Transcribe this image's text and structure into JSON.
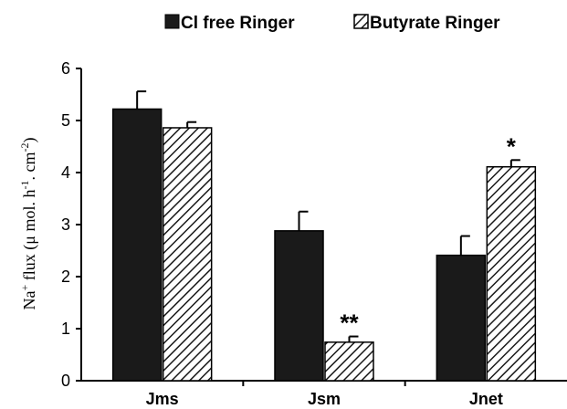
{
  "chart_data": {
    "type": "bar",
    "categories": [
      "Jms",
      "Jsm",
      "Jnet"
    ],
    "series": [
      {
        "name": "Cl free Ringer",
        "values": [
          5.22,
          2.88,
          2.41
        ],
        "errors": [
          0.34,
          0.37,
          0.37
        ],
        "fill": "#1a1a1a",
        "pattern": "solid"
      },
      {
        "name": "Butyrate Ringer",
        "values": [
          4.86,
          0.74,
          4.11
        ],
        "errors": [
          0.11,
          0.11,
          0.13
        ],
        "fill": "#1a1a1a",
        "pattern": "hatched"
      }
    ],
    "significance": [
      {
        "category": "Jsm",
        "series": "Butyrate Ringer",
        "label": "**"
      },
      {
        "category": "Jnet",
        "series": "Butyrate Ringer",
        "label": "*"
      }
    ],
    "ylabel": {
      "prefix": "Na",
      "sup1": "+",
      "mid": " flux (μ mol. h",
      "sup2": "-1",
      "mid2": ". cm",
      "sup3": "-2",
      "suffix": ")"
    },
    "ylim": [
      0,
      6
    ],
    "yticks": [
      "0",
      "1",
      "2",
      "3",
      "4",
      "5",
      "6"
    ],
    "grid": false,
    "legend_position": "top-center"
  }
}
